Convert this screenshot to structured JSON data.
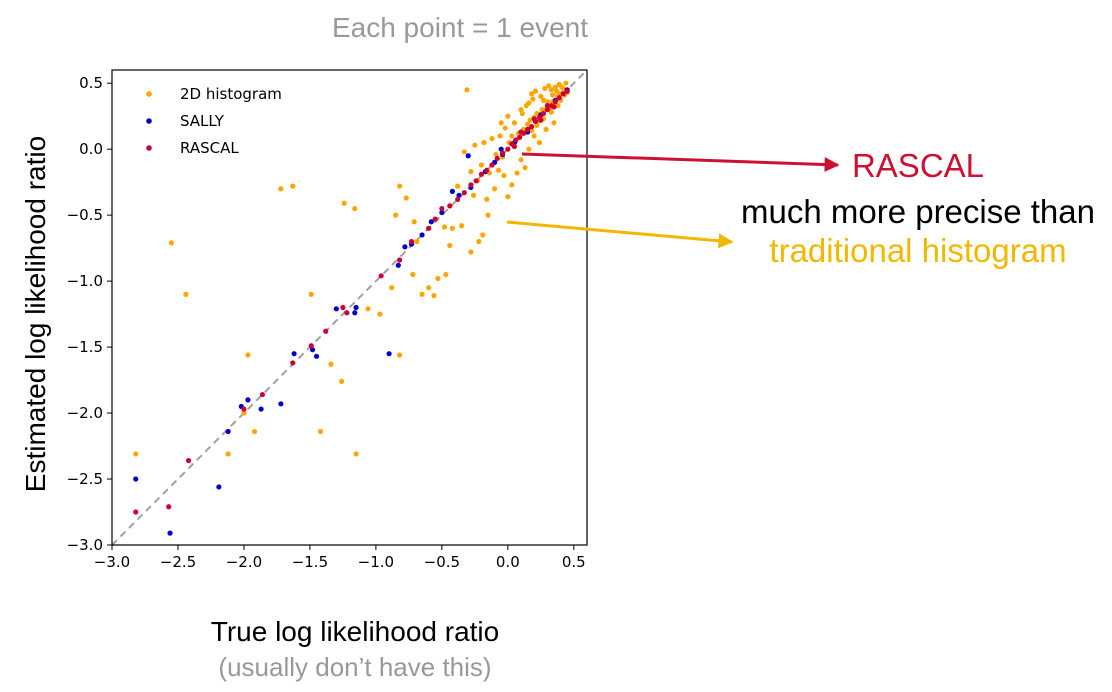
{
  "header": {
    "title": "Each point = 1 event"
  },
  "chart_data": {
    "type": "scatter",
    "xlabel": "True log likelihood ratio",
    "xlabel_note": "(usually don’t have this)",
    "ylabel": "Estimated log likelihood ratio",
    "xlim": [
      -3.0,
      0.6
    ],
    "ylim": [
      -3.0,
      0.6
    ],
    "xticks": [
      "−3.0",
      "−2.5",
      "−2.0",
      "−1.5",
      "−1.0",
      "−0.5",
      "0.0",
      "0.5"
    ],
    "yticks": [
      "−3.0",
      "−2.5",
      "−2.0",
      "−1.5",
      "−1.0",
      "−0.5",
      "0.0",
      "0.5"
    ],
    "xtick_values": [
      -3.0,
      -2.5,
      -2.0,
      -1.5,
      -1.0,
      -0.5,
      0.0,
      0.5
    ],
    "ytick_values": [
      -3.0,
      -2.5,
      -2.0,
      -1.5,
      -1.0,
      -0.5,
      0.0,
      0.5
    ],
    "diagonal": {
      "style": "dashed",
      "color": "#a0a0a0",
      "from": [
        -3.0,
        -3.0
      ],
      "to": [
        0.6,
        0.6
      ]
    },
    "legend_position": "top-left",
    "series": [
      {
        "name": "2D histogram",
        "color": "#ffa500",
        "points": [
          [
            -2.82,
            -2.31
          ],
          [
            -2.55,
            -0.71
          ],
          [
            -2.44,
            -1.1
          ],
          [
            -2.12,
            -2.31
          ],
          [
            -2.12,
            -2.14
          ],
          [
            -2.0,
            -2.0
          ],
          [
            -1.92,
            -2.14
          ],
          [
            -1.97,
            -1.56
          ],
          [
            -1.72,
            -0.3
          ],
          [
            -1.63,
            -0.28
          ],
          [
            -1.49,
            -1.1
          ],
          [
            -1.42,
            -2.14
          ],
          [
            -1.34,
            -1.63
          ],
          [
            -1.26,
            -1.76
          ],
          [
            -1.24,
            -0.41
          ],
          [
            -1.16,
            -0.45
          ],
          [
            -1.15,
            -2.31
          ],
          [
            -1.06,
            -1.21
          ],
          [
            -0.97,
            -1.25
          ],
          [
            -0.88,
            -1.05
          ],
          [
            -0.82,
            -1.56
          ],
          [
            -0.85,
            -0.5
          ],
          [
            -0.82,
            -0.28
          ],
          [
            -0.77,
            -0.37
          ],
          [
            -0.72,
            -0.95
          ],
          [
            -0.71,
            -0.55
          ],
          [
            -0.69,
            -0.7
          ],
          [
            -0.65,
            -1.1
          ],
          [
            -0.6,
            -1.05
          ],
          [
            -0.56,
            -1.11
          ],
          [
            -0.53,
            -0.98
          ],
          [
            -0.47,
            -0.95
          ],
          [
            -0.44,
            -0.73
          ],
          [
            -0.48,
            -0.59
          ],
          [
            -0.42,
            -0.6
          ],
          [
            -0.35,
            -0.58
          ],
          [
            -0.28,
            -0.78
          ],
          [
            -0.22,
            -0.7
          ],
          [
            -0.19,
            -0.65
          ],
          [
            -0.15,
            -0.5
          ],
          [
            -0.38,
            -0.28
          ],
          [
            -0.33,
            -0.02
          ],
          [
            -0.31,
            0.45
          ],
          [
            -0.28,
            -0.17
          ],
          [
            -0.25,
            0.03
          ],
          [
            -0.23,
            -0.24
          ],
          [
            -0.18,
            0.05
          ],
          [
            -0.16,
            -0.38
          ],
          [
            -0.12,
            0.08
          ],
          [
            -0.1,
            -0.3
          ],
          [
            -0.07,
            -0.16
          ],
          [
            -0.06,
            0.1
          ],
          [
            -0.03,
            -0.2
          ],
          [
            -0.02,
            0.16
          ],
          [
            0.0,
            -0.36
          ],
          [
            0.01,
            0.05
          ],
          [
            0.03,
            -0.27
          ],
          [
            0.05,
            0.2
          ],
          [
            0.07,
            -0.18
          ],
          [
            0.08,
            0.12
          ],
          [
            0.1,
            -0.08
          ],
          [
            0.11,
            0.27
          ],
          [
            0.13,
            -0.14
          ],
          [
            0.14,
            0.33
          ],
          [
            0.16,
            0.0
          ],
          [
            0.17,
            0.22
          ],
          [
            0.19,
            0.38
          ],
          [
            0.2,
            0.1
          ],
          [
            0.21,
            0.44
          ],
          [
            0.22,
            0.27
          ],
          [
            0.24,
            0.05
          ],
          [
            0.25,
            0.4
          ],
          [
            0.26,
            0.3
          ],
          [
            0.28,
            0.46
          ],
          [
            0.29,
            0.15
          ],
          [
            0.3,
            0.36
          ],
          [
            0.31,
            0.48
          ],
          [
            0.33,
            0.28
          ],
          [
            0.34,
            0.41
          ],
          [
            0.35,
            0.2
          ],
          [
            0.37,
            0.44
          ],
          [
            0.38,
            0.33
          ],
          [
            0.39,
            0.49
          ],
          [
            0.4,
            0.37
          ],
          [
            0.42,
            0.46
          ],
          [
            0.43,
            0.41
          ],
          [
            0.44,
            0.5
          ],
          [
            0.45,
            0.43
          ],
          [
            0.12,
            0.15
          ],
          [
            0.15,
            0.19
          ],
          [
            0.18,
            0.14
          ],
          [
            0.2,
            0.24
          ],
          [
            0.23,
            0.21
          ],
          [
            0.25,
            0.26
          ],
          [
            0.27,
            0.23
          ],
          [
            0.29,
            0.3
          ],
          [
            0.32,
            0.31
          ],
          [
            0.34,
            0.36
          ],
          [
            0.36,
            0.33
          ],
          [
            0.38,
            0.4
          ],
          [
            0.4,
            0.42
          ],
          [
            0.06,
            0.06
          ],
          [
            0.03,
            0.1
          ],
          [
            -0.04,
            -0.06
          ],
          [
            -0.09,
            -0.04
          ],
          [
            -0.14,
            -0.18
          ],
          [
            -0.2,
            -0.12
          ],
          [
            -0.26,
            -0.35
          ],
          [
            0.1,
            0.3
          ],
          [
            0.16,
            0.35
          ],
          [
            0.22,
            0.18
          ],
          [
            0.27,
            0.37
          ],
          [
            0.33,
            0.45
          ],
          [
            0.36,
            0.47
          ],
          [
            0.41,
            0.47
          ],
          [
            0.18,
            0.42
          ],
          [
            0.0,
            0.25
          ],
          [
            -0.05,
            0.2
          ]
        ]
      },
      {
        "name": "SALLY",
        "color": "#0000cc",
        "points": [
          [
            -2.82,
            -2.5
          ],
          [
            -2.56,
            -2.91
          ],
          [
            -2.19,
            -2.56
          ],
          [
            -2.12,
            -2.14
          ],
          [
            -2.02,
            -1.95
          ],
          [
            -1.97,
            -1.9
          ],
          [
            -1.87,
            -1.97
          ],
          [
            -1.72,
            -1.93
          ],
          [
            -1.62,
            -1.55
          ],
          [
            -1.48,
            -1.52
          ],
          [
            -1.45,
            -1.57
          ],
          [
            -1.3,
            -1.21
          ],
          [
            -1.16,
            -1.24
          ],
          [
            -1.15,
            -1.2
          ],
          [
            -0.9,
            -1.55
          ],
          [
            -0.83,
            -0.88
          ],
          [
            -0.78,
            -0.74
          ],
          [
            -0.73,
            -0.72
          ],
          [
            -0.65,
            -0.65
          ],
          [
            -0.58,
            -0.55
          ],
          [
            -0.5,
            -0.48
          ],
          [
            -0.42,
            -0.32
          ],
          [
            -0.37,
            -0.35
          ],
          [
            -0.28,
            -0.29
          ],
          [
            -0.17,
            -0.17
          ],
          [
            -0.1,
            -0.1
          ],
          [
            -0.04,
            -0.04
          ],
          [
            0.05,
            0.05
          ],
          [
            0.15,
            0.13
          ],
          [
            0.25,
            0.26
          ],
          [
            0.36,
            0.37
          ],
          [
            0.45,
            0.45
          ],
          [
            -0.3,
            -0.05
          ],
          [
            -0.05,
            0.0
          ]
        ]
      },
      {
        "name": "RASCAL",
        "color": "#cc0033",
        "points": [
          [
            -2.82,
            -2.75
          ],
          [
            -2.57,
            -2.71
          ],
          [
            -2.42,
            -2.36
          ],
          [
            -2.0,
            -1.97
          ],
          [
            -1.86,
            -1.86
          ],
          [
            -1.63,
            -1.62
          ],
          [
            -1.49,
            -1.49
          ],
          [
            -1.38,
            -1.38
          ],
          [
            -1.25,
            -1.2
          ],
          [
            -1.22,
            -1.24
          ],
          [
            -0.96,
            -0.96
          ],
          [
            -0.82,
            -0.84
          ],
          [
            -0.73,
            -0.7
          ],
          [
            -0.6,
            -0.6
          ],
          [
            -0.55,
            -0.53
          ],
          [
            -0.5,
            -0.45
          ],
          [
            -0.44,
            -0.43
          ],
          [
            -0.38,
            -0.38
          ],
          [
            -0.33,
            -0.33
          ],
          [
            -0.28,
            -0.27
          ],
          [
            -0.24,
            -0.24
          ],
          [
            -0.2,
            -0.19
          ],
          [
            -0.16,
            -0.16
          ],
          [
            -0.12,
            -0.12
          ],
          [
            -0.08,
            -0.07
          ],
          [
            -0.04,
            -0.03
          ],
          [
            0.0,
            0.0
          ],
          [
            0.03,
            0.04
          ],
          [
            0.06,
            0.07
          ],
          [
            0.09,
            0.09
          ],
          [
            0.12,
            0.12
          ],
          [
            0.15,
            0.15
          ],
          [
            0.18,
            0.17
          ],
          [
            0.21,
            0.21
          ],
          [
            0.24,
            0.24
          ],
          [
            0.27,
            0.27
          ],
          [
            0.3,
            0.3
          ],
          [
            0.33,
            0.33
          ],
          [
            0.36,
            0.36
          ],
          [
            0.39,
            0.39
          ],
          [
            0.42,
            0.42
          ],
          [
            0.45,
            0.44
          ],
          [
            0.2,
            0.23
          ],
          [
            0.25,
            0.22
          ],
          [
            0.3,
            0.33
          ],
          [
            0.35,
            0.32
          ],
          [
            0.1,
            0.13
          ],
          [
            0.05,
            0.02
          ]
        ]
      }
    ]
  },
  "annotations": {
    "rascal": {
      "text": "RASCAL",
      "color": "#cc1133"
    },
    "precise": {
      "text": "much more precise than",
      "color": "#000000"
    },
    "histogram": {
      "text": "traditional histogram",
      "color": "#f2b700"
    }
  }
}
